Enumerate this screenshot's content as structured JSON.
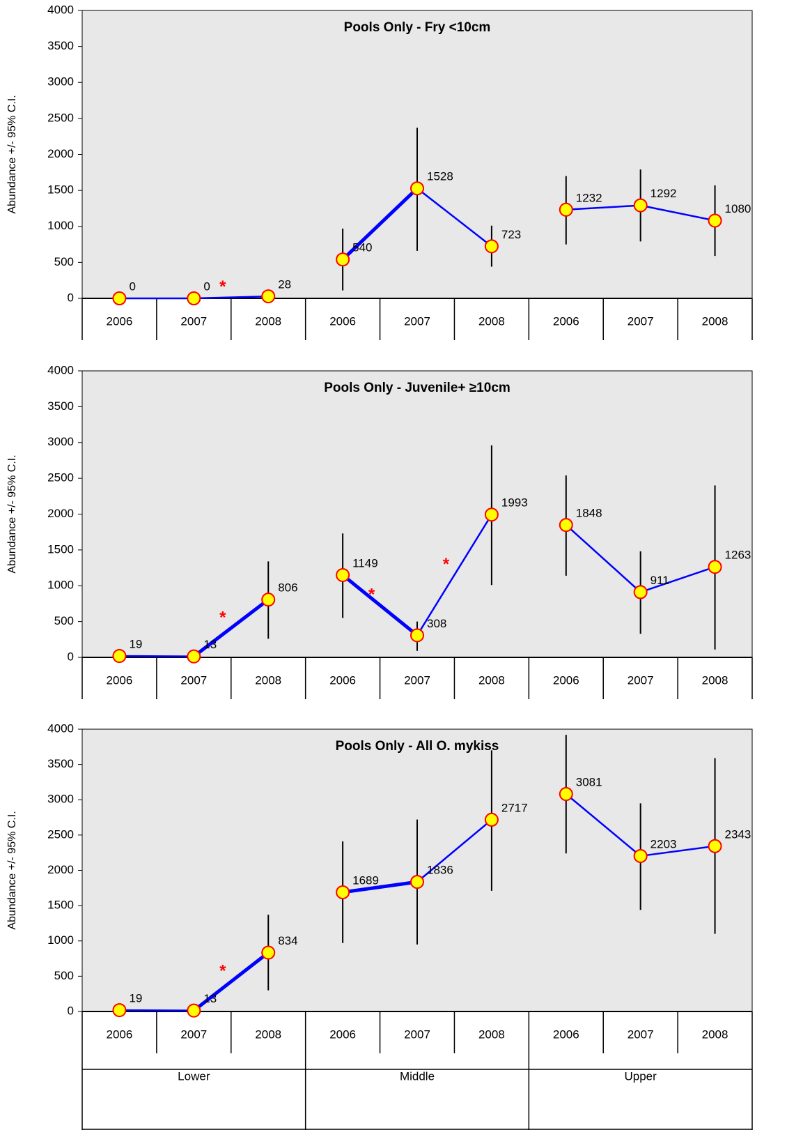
{
  "chart_data": [
    {
      "type": "line",
      "title": "Pools Only - Fry <10cm",
      "y_label": "Abundance +/- 95% C.I.",
      "categories": [
        "2006",
        "2007",
        "2008",
        "2006",
        "2007",
        "2008",
        "2006",
        "2007",
        "2008"
      ],
      "values": [
        0,
        0,
        28,
        540,
        1528,
        723,
        1232,
        1292,
        1080
      ],
      "ci_low": [
        null,
        null,
        null,
        110,
        660,
        440,
        750,
        790,
        590
      ],
      "ci_high": [
        null,
        null,
        null,
        970,
        2370,
        1010,
        1700,
        1790,
        1570
      ],
      "annotations": [
        {
          "text": "*",
          "from": 1,
          "to": 2
        }
      ],
      "thick_segments": [
        3
      ],
      "line_color": "#0000ff",
      "marker_color": "#ffff00",
      "marker_edge": "#ff0000",
      "ylim": [
        0,
        4000
      ],
      "yticks": [
        0,
        500,
        1000,
        1500,
        2000,
        2500,
        3000,
        3500,
        4000
      ]
    },
    {
      "type": "line",
      "title": "Pools Only - Juvenile+ ≥10cm",
      "y_label": "Abundance +/- 95% C.I.",
      "categories": [
        "2006",
        "2007",
        "2008",
        "2006",
        "2007",
        "2008",
        "2006",
        "2007",
        "2008"
      ],
      "values": [
        19,
        13,
        806,
        1149,
        308,
        1993,
        1848,
        911,
        1263
      ],
      "ci_low": [
        null,
        null,
        260,
        550,
        90,
        1010,
        1140,
        330,
        110
      ],
      "ci_high": [
        null,
        null,
        1340,
        1730,
        500,
        2960,
        2540,
        1480,
        2400
      ],
      "annotations": [
        {
          "text": "*",
          "from": 1,
          "to": 2
        },
        {
          "text": "*",
          "from": 3,
          "to": 4
        },
        {
          "text": "*",
          "from": 4,
          "to": 5
        }
      ],
      "thick_segments": [
        1,
        3
      ],
      "line_color": "#0000ff",
      "marker_color": "#ffff00",
      "marker_edge": "#ff0000",
      "ylim": [
        0,
        4000
      ],
      "yticks": [
        0,
        500,
        1000,
        1500,
        2000,
        2500,
        3000,
        3500,
        4000
      ]
    },
    {
      "type": "line",
      "title": "Pools Only - All O. mykiss",
      "y_label": "Abundance +/- 95% C.I.",
      "categories": [
        "2006",
        "2007",
        "2008",
        "2006",
        "2007",
        "2008",
        "2006",
        "2007",
        "2008"
      ],
      "groups": [
        "Lower",
        "Middle",
        "Upper"
      ],
      "values": [
        19,
        13,
        834,
        1689,
        1836,
        2717,
        3081,
        2203,
        2343
      ],
      "ci_low": [
        null,
        null,
        300,
        970,
        950,
        1710,
        2240,
        1440,
        1100
      ],
      "ci_high": [
        null,
        null,
        1370,
        2410,
        2720,
        3700,
        3920,
        2950,
        3590
      ],
      "annotations": [
        {
          "text": "*",
          "from": 1,
          "to": 2
        }
      ],
      "thick_segments": [
        1,
        3
      ],
      "line_color": "#0000ff",
      "marker_color": "#ffff00",
      "marker_edge": "#ff0000",
      "ylim": [
        0,
        4000
      ],
      "yticks": [
        0,
        500,
        1000,
        1500,
        2000,
        2500,
        3000,
        3500,
        4000
      ]
    }
  ]
}
